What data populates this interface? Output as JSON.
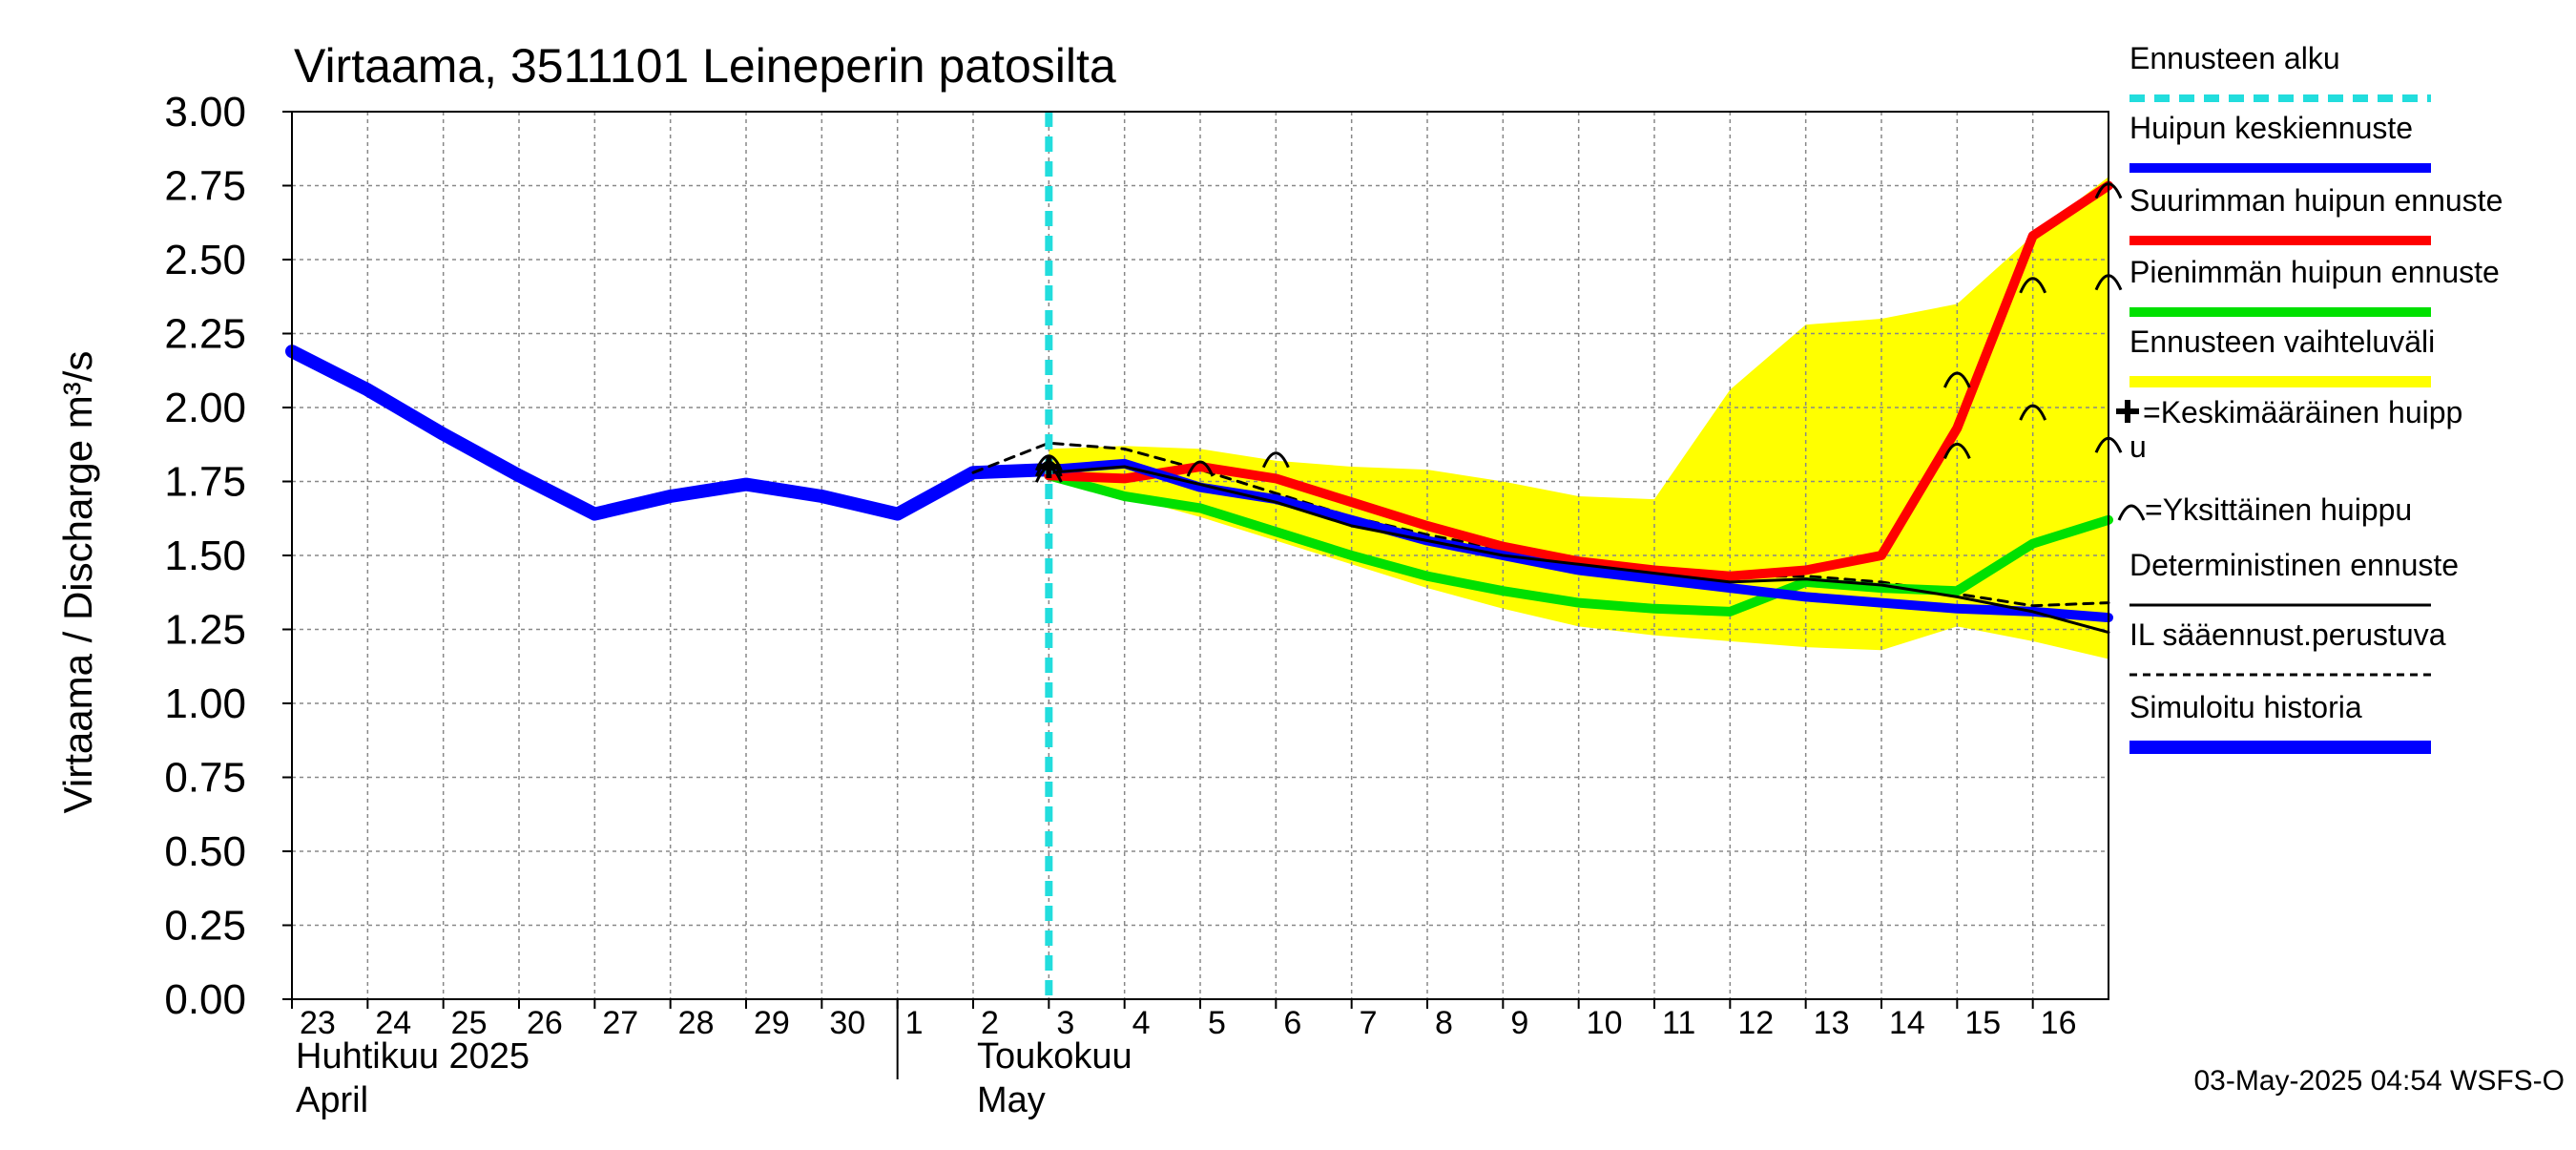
{
  "chart_data": {
    "type": "line",
    "title": "Virtaama, 3511101 Leineperin patosilta",
    "ylabel": "Virtaama / Discharge     m³/s",
    "ylim": [
      0,
      3
    ],
    "yticks": [
      "0.00",
      "0.25",
      "0.50",
      "0.75",
      "1.00",
      "1.25",
      "1.50",
      "1.75",
      "2.00",
      "2.25",
      "2.50",
      "2.75",
      "3.00"
    ],
    "xlim": [
      0,
      24
    ],
    "day_ticks": [
      {
        "x": 0,
        "label": "23"
      },
      {
        "x": 1,
        "label": "24"
      },
      {
        "x": 2,
        "label": "25"
      },
      {
        "x": 3,
        "label": "26"
      },
      {
        "x": 4,
        "label": "27"
      },
      {
        "x": 5,
        "label": "28"
      },
      {
        "x": 6,
        "label": "29"
      },
      {
        "x": 7,
        "label": "30"
      },
      {
        "x": 8,
        "label": "1"
      },
      {
        "x": 9,
        "label": "2"
      },
      {
        "x": 10,
        "label": "3"
      },
      {
        "x": 11,
        "label": "4"
      },
      {
        "x": 12,
        "label": "5"
      },
      {
        "x": 13,
        "label": "6"
      },
      {
        "x": 14,
        "label": "7"
      },
      {
        "x": 15,
        "label": "8"
      },
      {
        "x": 16,
        "label": "9"
      },
      {
        "x": 17,
        "label": "10"
      },
      {
        "x": 18,
        "label": "11"
      },
      {
        "x": 19,
        "label": "12"
      },
      {
        "x": 20,
        "label": "13"
      },
      {
        "x": 21,
        "label": "14"
      },
      {
        "x": 22,
        "label": "15"
      },
      {
        "x": 23,
        "label": "16"
      }
    ],
    "month_labels": [
      {
        "x": 0,
        "line1": "Huhtikuu  2025",
        "line2": "April"
      },
      {
        "x": 9,
        "line1": "Toukokuu",
        "line2": "May"
      }
    ],
    "month_separator_x": 8,
    "forecast_start_x": 10,
    "band": {
      "upper": [
        [
          10,
          1.86
        ],
        [
          11,
          1.87
        ],
        [
          12,
          1.86
        ],
        [
          13,
          1.82
        ],
        [
          14,
          1.8
        ],
        [
          15,
          1.79
        ],
        [
          16,
          1.75
        ],
        [
          17,
          1.7
        ],
        [
          18,
          1.69
        ],
        [
          19,
          2.06
        ],
        [
          20,
          2.28
        ],
        [
          21,
          2.3
        ],
        [
          22,
          2.35
        ],
        [
          23,
          2.58
        ],
        [
          24,
          2.78
        ]
      ],
      "lower": [
        [
          24,
          1.15
        ],
        [
          23,
          1.21
        ],
        [
          22,
          1.26
        ],
        [
          21,
          1.18
        ],
        [
          20,
          1.19
        ],
        [
          19,
          1.21
        ],
        [
          18,
          1.23
        ],
        [
          17,
          1.26
        ],
        [
          16,
          1.32
        ],
        [
          15,
          1.39
        ],
        [
          14,
          1.47
        ],
        [
          13,
          1.55
        ],
        [
          12,
          1.63
        ],
        [
          11,
          1.7
        ],
        [
          10,
          1.76
        ]
      ]
    },
    "series": [
      {
        "key": "history",
        "color": "#0000ff",
        "width": 14,
        "dash": "",
        "points": [
          [
            0,
            2.19
          ],
          [
            1,
            2.06
          ],
          [
            2,
            1.91
          ],
          [
            3,
            1.77
          ],
          [
            4,
            1.64
          ],
          [
            5,
            1.7
          ],
          [
            6,
            1.74
          ],
          [
            7,
            1.7
          ],
          [
            8,
            1.64
          ],
          [
            9,
            1.78
          ],
          [
            10,
            1.79
          ]
        ]
      },
      {
        "key": "il",
        "color": "#000000",
        "width": 3,
        "dash": "10,8",
        "points": [
          [
            9,
            1.78
          ],
          [
            10,
            1.88
          ],
          [
            11,
            1.86
          ],
          [
            12,
            1.79
          ],
          [
            13,
            1.71
          ],
          [
            14,
            1.63
          ],
          [
            15,
            1.57
          ],
          [
            16,
            1.52
          ],
          [
            17,
            1.48
          ],
          [
            18,
            1.45
          ],
          [
            19,
            1.43
          ],
          [
            20,
            1.43
          ],
          [
            21,
            1.41
          ],
          [
            22,
            1.37
          ],
          [
            23,
            1.33
          ],
          [
            24,
            1.34
          ]
        ]
      },
      {
        "key": "min",
        "color": "#00e000",
        "width": 10,
        "dash": "",
        "points": [
          [
            10,
            1.77
          ],
          [
            11,
            1.7
          ],
          [
            12,
            1.66
          ],
          [
            13,
            1.58
          ],
          [
            14,
            1.5
          ],
          [
            15,
            1.43
          ],
          [
            16,
            1.38
          ],
          [
            17,
            1.34
          ],
          [
            18,
            1.32
          ],
          [
            19,
            1.31
          ],
          [
            20,
            1.41
          ],
          [
            21,
            1.39
          ],
          [
            22,
            1.38
          ],
          [
            23,
            1.54
          ],
          [
            24,
            1.62
          ]
        ]
      },
      {
        "key": "max",
        "color": "#ff0000",
        "width": 10,
        "dash": "",
        "points": [
          [
            10,
            1.77
          ],
          [
            11,
            1.76
          ],
          [
            12,
            1.8
          ],
          [
            13,
            1.76
          ],
          [
            14,
            1.68
          ],
          [
            15,
            1.6
          ],
          [
            16,
            1.53
          ],
          [
            17,
            1.48
          ],
          [
            18,
            1.45
          ],
          [
            19,
            1.43
          ],
          [
            20,
            1.45
          ],
          [
            21,
            1.5
          ],
          [
            22,
            1.93
          ],
          [
            23,
            2.58
          ],
          [
            24,
            2.75
          ]
        ]
      },
      {
        "key": "mean",
        "color": "#0000ff",
        "width": 10,
        "dash": "",
        "points": [
          [
            10,
            1.79
          ],
          [
            11,
            1.81
          ],
          [
            12,
            1.73
          ],
          [
            13,
            1.69
          ],
          [
            14,
            1.62
          ],
          [
            15,
            1.55
          ],
          [
            16,
            1.5
          ],
          [
            17,
            1.45
          ],
          [
            18,
            1.42
          ],
          [
            19,
            1.39
          ],
          [
            20,
            1.36
          ],
          [
            21,
            1.34
          ],
          [
            22,
            1.32
          ],
          [
            23,
            1.31
          ],
          [
            24,
            1.29
          ]
        ]
      },
      {
        "key": "det",
        "color": "#000000",
        "width": 3,
        "dash": "",
        "points": [
          [
            10,
            1.78
          ],
          [
            11,
            1.8
          ],
          [
            12,
            1.74
          ],
          [
            13,
            1.68
          ],
          [
            14,
            1.6
          ],
          [
            15,
            1.55
          ],
          [
            16,
            1.5
          ],
          [
            17,
            1.47
          ],
          [
            18,
            1.44
          ],
          [
            19,
            1.41
          ],
          [
            20,
            1.42
          ],
          [
            21,
            1.4
          ],
          [
            22,
            1.36
          ],
          [
            23,
            1.31
          ],
          [
            24,
            1.24
          ]
        ]
      }
    ],
    "single_peaks": [
      [
        10,
        1.82
      ],
      [
        10,
        1.8
      ],
      [
        10,
        1.78
      ],
      [
        12,
        1.8
      ],
      [
        13,
        1.83
      ],
      [
        22,
        2.1
      ],
      [
        22,
        1.86
      ],
      [
        23,
        2.42
      ],
      [
        23,
        1.99
      ],
      [
        24,
        2.74
      ],
      [
        24,
        2.43
      ],
      [
        24,
        1.88
      ]
    ],
    "mean_peak": [
      10,
      1.8
    ],
    "legend": [
      {
        "label": "Ennusteen alku",
        "type": "line",
        "color": "#22dddd",
        "width": 8,
        "dash": "16,10"
      },
      {
        "label": "Huipun keskiennuste",
        "type": "line",
        "color": "#0000ff",
        "width": 10,
        "dash": ""
      },
      {
        "label": "Suurimman huipun ennuste",
        "type": "line",
        "color": "#ff0000",
        "width": 10,
        "dash": ""
      },
      {
        "label": "Pienimmän huipun ennuste",
        "type": "line",
        "color": "#00e000",
        "width": 10,
        "dash": ""
      },
      {
        "label": "Ennusteen vaihteluväli",
        "type": "line",
        "color": "#ffff00",
        "width": 12,
        "dash": ""
      },
      {
        "label": "=Keskimääräinen huipp",
        "label2": "u",
        "type": "mean-peak"
      },
      {
        "label": "=Yksittäinen huippu",
        "type": "single-peak"
      },
      {
        "label": "Deterministinen ennuste",
        "type": "line",
        "color": "#000000",
        "width": 3,
        "dash": ""
      },
      {
        "label": "IL sääennust.perustuva",
        "type": "line",
        "color": "#000000",
        "width": 3,
        "dash": "8,6"
      },
      {
        "label": "Simuloitu historia",
        "type": "line",
        "color": "#0000ff",
        "width": 14,
        "dash": ""
      }
    ],
    "timestamp": "03-May-2025 04:54 WSFS-O",
    "colors": {
      "band": "#ffff00",
      "grid": "#888888",
      "forecast_start": "#22dddd"
    }
  }
}
